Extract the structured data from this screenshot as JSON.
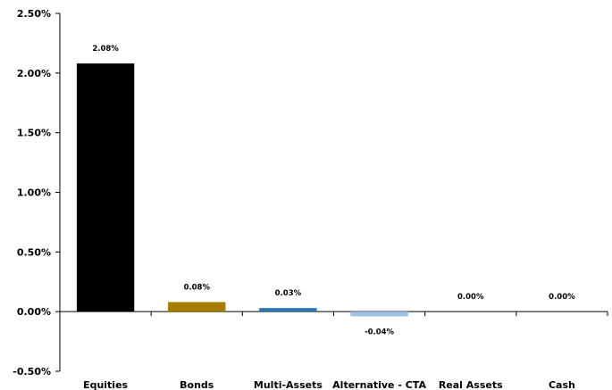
{
  "chart_data": {
    "type": "bar",
    "categories": [
      "Equities",
      "Bonds",
      "Multi-Assets",
      "Alternative - CTA",
      "Real Assets",
      "Cash"
    ],
    "values": [
      2.08,
      0.08,
      0.03,
      -0.04,
      0.0,
      0.0
    ],
    "data_labels": [
      "2.08%",
      "0.08%",
      "0.03%",
      "-0.04%",
      "0.00%",
      "0.00%"
    ],
    "colors": [
      "#000000",
      "#a57c00",
      "#2e75b6",
      "#9dc3e6",
      "#ffffff",
      "#ffffff"
    ],
    "y_ticks": [
      2.5,
      2.0,
      1.5,
      1.0,
      0.5,
      0.0,
      -0.5
    ],
    "y_tick_labels": [
      "2.50%",
      "2.00%",
      "1.50%",
      "1.00%",
      "0.50%",
      "0.00%",
      "-0.50%"
    ],
    "ylim": [
      -0.5,
      2.5
    ],
    "grid": false,
    "legend": "none",
    "title": "",
    "xlabel": "",
    "ylabel": ""
  }
}
